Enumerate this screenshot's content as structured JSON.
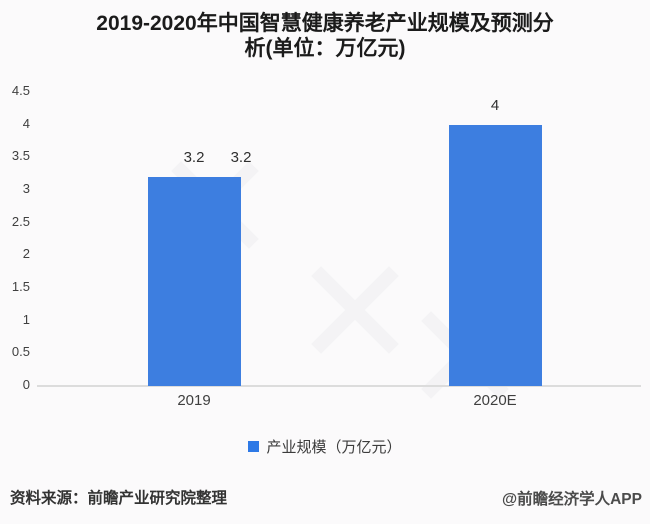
{
  "header": {
    "title_line1": "2019-2020年中国智慧健康养老产业规模及预测分",
    "title_line2": "析(单位：万亿元)"
  },
  "chart_data": {
    "type": "bar",
    "title": "2019-2020年中国智慧健康养老产业规模及预测分析(单位：万亿元)",
    "categories": [
      "2019",
      "2020E"
    ],
    "values": [
      3.2,
      4
    ],
    "value_labels": [
      [
        "3.2",
        "3.2"
      ],
      [
        "4"
      ]
    ],
    "series_name": "产业规模（万亿元）",
    "unit": "万亿元",
    "ylim": [
      0,
      4.5
    ],
    "yticks": [
      0,
      0.5,
      1,
      1.5,
      2,
      2.5,
      3,
      3.5,
      4,
      4.5
    ],
    "ytick_labels": [
      "0",
      "0.5",
      "1",
      "1.5",
      "2",
      "2.5",
      "3",
      "3.5",
      "4",
      "4.5"
    ],
    "grid": false,
    "legend_position": "bottom",
    "bar_color": "#3d7ee0"
  },
  "legend": {
    "label": "产业规模（万亿元）",
    "swatch_color": "#2e79e6"
  },
  "footer": {
    "source": "资料来源：前瞻产业研究院整理",
    "credit": "@前瞻经济学人APP"
  },
  "colors": {
    "bar": "#3d7ee0",
    "axis_line": "#dcdcdc",
    "background": "#fbfafb",
    "title_text": "#1b1b1b"
  }
}
